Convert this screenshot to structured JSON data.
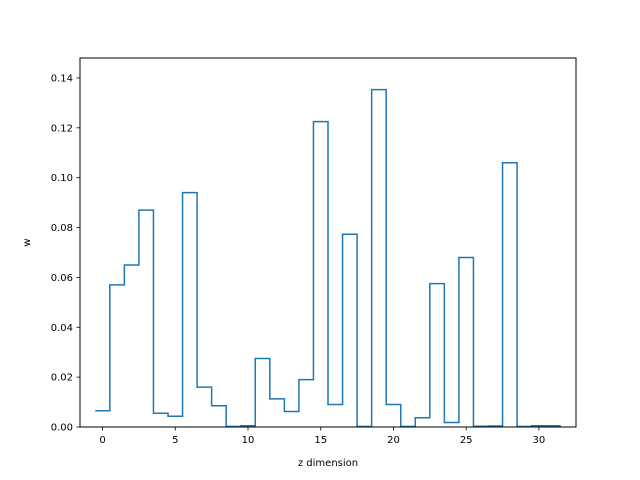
{
  "chart_data": {
    "type": "line",
    "style": "step",
    "title": "",
    "xlabel": "z dimension",
    "ylabel": "w",
    "xlim": [
      -1.55,
      32.55
    ],
    "ylim": [
      0,
      0.148
    ],
    "xticks": [
      0,
      5,
      10,
      15,
      20,
      25,
      30
    ],
    "xtick_labels": [
      "0",
      "5",
      "10",
      "15",
      "20",
      "25",
      "30"
    ],
    "yticks": [
      0,
      0.02,
      0.04,
      0.06,
      0.08,
      0.1,
      0.12,
      0.14
    ],
    "ytick_labels": [
      "0.00",
      "0.02",
      "0.04",
      "0.06",
      "0.08",
      "0.10",
      "0.12",
      "0.14"
    ],
    "grid": false,
    "series": [
      {
        "color": "#1f77b4",
        "x": [
          0,
          1,
          2,
          3,
          4,
          5,
          6,
          7,
          8,
          9,
          10,
          11,
          12,
          13,
          14,
          15,
          16,
          17,
          18,
          19,
          20,
          21,
          22,
          23,
          24,
          25,
          26,
          27,
          28,
          29,
          30,
          31
        ],
        "values": [
          0.0065,
          0.057,
          0.065,
          0.087,
          0.0055,
          0.0043,
          0.094,
          0.016,
          0.0085,
          0.0002,
          0.0005,
          0.0275,
          0.0113,
          0.0062,
          0.019,
          0.1225,
          0.009,
          0.0773,
          0.0002,
          0.1353,
          0.009,
          0.0002,
          0.0037,
          0.0575,
          0.0018,
          0.068,
          0.0003,
          0.0004,
          0.106,
          0.0002,
          0.0005,
          0.0005
        ]
      }
    ]
  }
}
